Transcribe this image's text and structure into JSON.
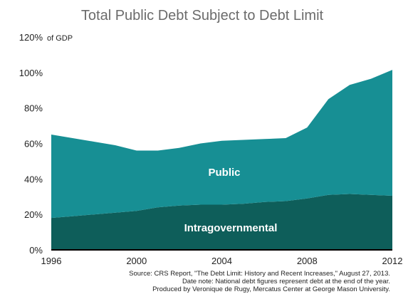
{
  "chart_data": {
    "type": "area",
    "stacked": true,
    "title": "Total Public Debt Subject to Debt Limit",
    "y_unit_label": "of GDP",
    "x": [
      1996,
      1997,
      1998,
      1999,
      2000,
      2001,
      2002,
      2003,
      2004,
      2005,
      2006,
      2007,
      2008,
      2009,
      2010,
      2011,
      2012
    ],
    "x_ticks": [
      "1996",
      "2000",
      "2004",
      "2008",
      "2012"
    ],
    "y_ticks": [
      "0%",
      "20%",
      "40%",
      "60%",
      "80%",
      "100%",
      "120%"
    ],
    "ylim": [
      0,
      120
    ],
    "grid": false,
    "legend": "none",
    "series": [
      {
        "name": "Intragovernmental",
        "color": "#0e5e5a",
        "values": [
          18,
          19,
          20,
          21,
          22,
          24,
          25,
          25.5,
          25.5,
          26,
          27,
          27.5,
          29,
          31,
          31.5,
          31,
          30.5
        ]
      },
      {
        "name": "Public",
        "color": "#178f94",
        "values": [
          47,
          44,
          41,
          38,
          34,
          32,
          32.5,
          34.5,
          36,
          36,
          35.5,
          35.5,
          40,
          54,
          61.5,
          65.5,
          71
        ]
      }
    ],
    "annotations": [
      "Source: CRS Report, \"The Debt Limit: History and Recent Increases,\" August 27, 2013.",
      "Date note: National debt figures represent debt at the end of the year.",
      "Produced by Veronique de Rugy, Mercatus Center at George Mason University."
    ]
  }
}
